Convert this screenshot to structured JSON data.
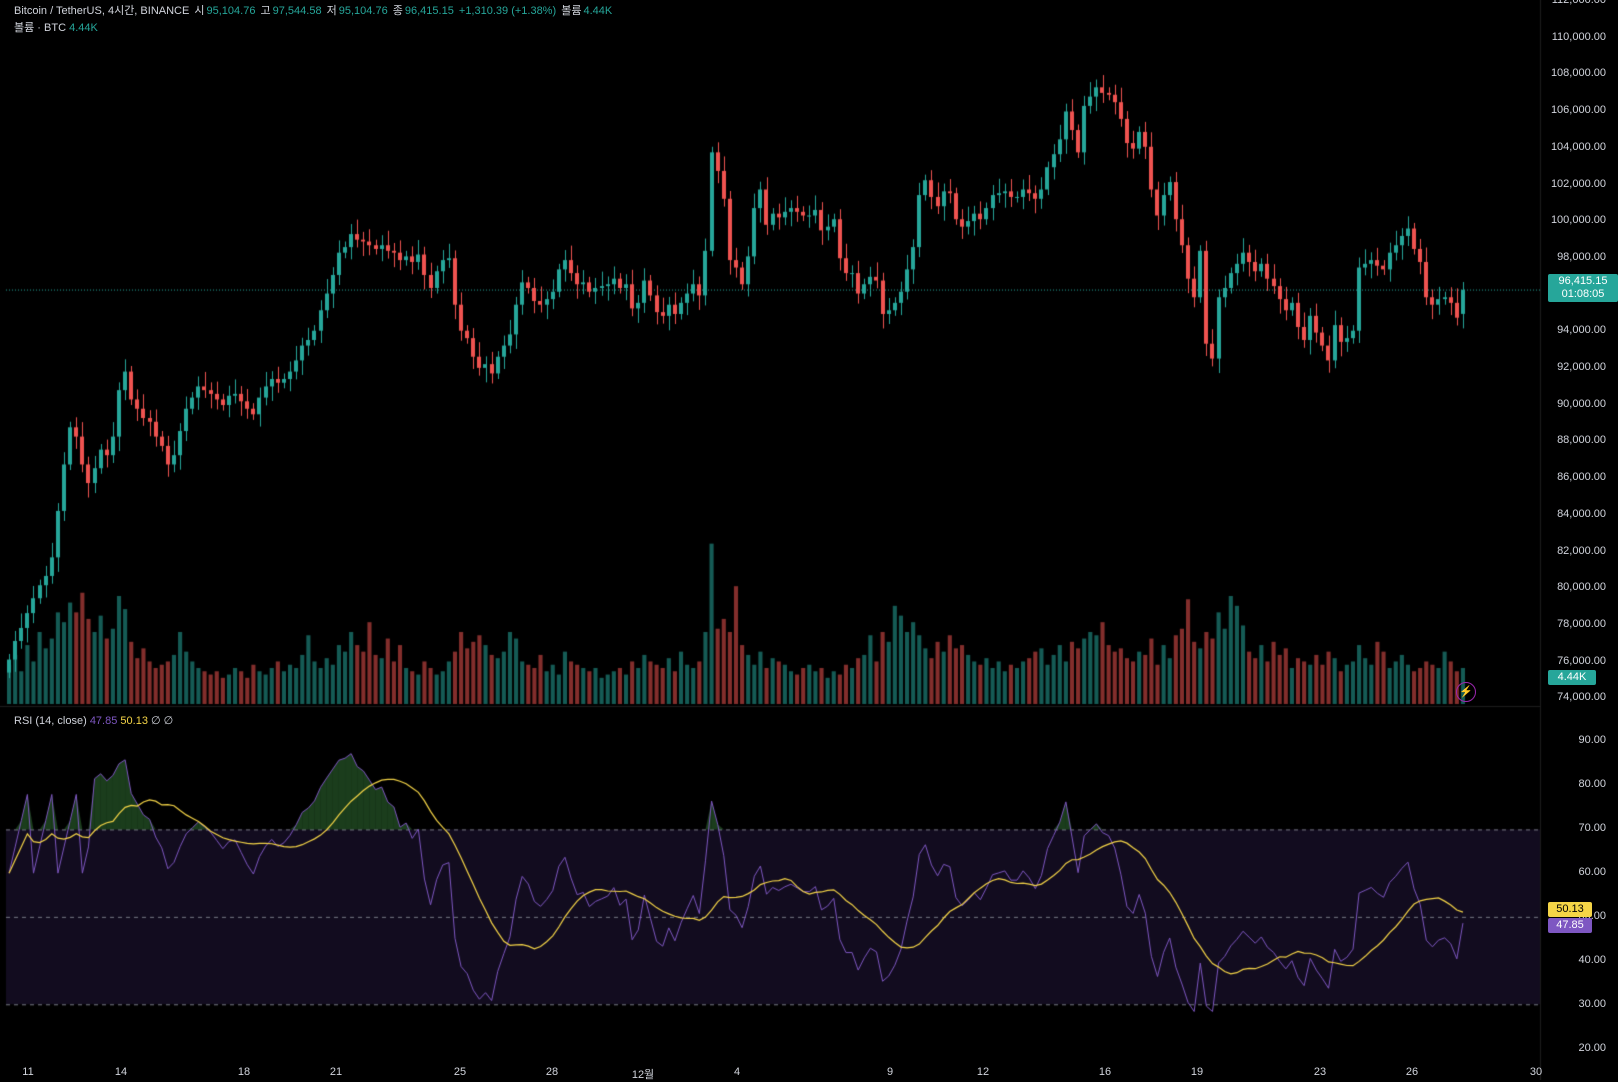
{
  "header": {
    "symbol": "Bitcoin / TetherUS, 4시간, BINANCE",
    "open_label": "시",
    "open": "95,104.76",
    "high_label": "고",
    "high": "97,544.58",
    "low_label": "저",
    "low": "95,104.76",
    "close_label": "종",
    "close": "96,415.15",
    "change": "+1,310.39 (+1.38%)",
    "vol_label": "볼륨",
    "vol": "4.44K"
  },
  "volume_legend": {
    "label": "볼륨 · BTC",
    "value": "4.44K"
  },
  "rsi_legend": {
    "label": "RSI (14, close)",
    "rsi": "47.85",
    "ma": "50.13",
    "na1": "∅",
    "na2": "∅"
  },
  "price_axis": [
    "112,000.00",
    "110,000.00",
    "108,000.00",
    "106,000.00",
    "104,000.00",
    "102,000.00",
    "100,000.00",
    "98,000.00",
    "96,000.00",
    "94,000.00",
    "92,000.00",
    "90,000.00",
    "88,000.00",
    "86,000.00",
    "84,000.00",
    "82,000.00",
    "80,000.00",
    "78,000.00",
    "76,000.00",
    "74,000.00"
  ],
  "rsi_axis": [
    "90.00",
    "80.00",
    "70.00",
    "60.00",
    "50.00",
    "40.00",
    "30.00",
    "20.00"
  ],
  "time_axis": [
    "11",
    "14",
    "18",
    "21",
    "25",
    "28",
    "12월",
    "4",
    "9",
    "12",
    "16",
    "19",
    "23",
    "26",
    "30"
  ],
  "badges": {
    "price": "96,415.15",
    "countdown": "01:08:05",
    "volume": "4.44K",
    "rsi_ma": "50.13",
    "rsi": "47.85"
  },
  "colors": {
    "up": "#26a69a",
    "down": "#ef5350",
    "rsi_line": "#7e57c2",
    "rsi_ma": "#f5d547",
    "rsi_band": "#120c1f"
  },
  "chart_data": {
    "type": "candlestick",
    "interval": "4h",
    "price_range": [
      74000,
      112000
    ],
    "rsi_range": [
      20,
      90
    ],
    "rsi_levels": [
      70,
      50,
      30
    ],
    "closes": [
      76500,
      77500,
      78200,
      79000,
      79800,
      80500,
      81000,
      82000,
      84500,
      87000,
      89000,
      88500,
      87000,
      86000,
      86800,
      87800,
      87500,
      88500,
      91000,
      92000,
      90500,
      90000,
      89500,
      89300,
      88500,
      88000,
      87000,
      87500,
      88800,
      90000,
      90600,
      91200,
      91000,
      90800,
      90500,
      90200,
      90700,
      90800,
      90400,
      90000,
      89700,
      90600,
      91200,
      91600,
      91400,
      91600,
      92000,
      92600,
      93400,
      93700,
      94200,
      95300,
      96200,
      97200,
      98400,
      98700,
      99400,
      99100,
      99000,
      98800,
      98600,
      98800,
      98500,
      98400,
      98000,
      98200,
      97900,
      98300,
      97200,
      96500,
      97400,
      98000,
      98100,
      95600,
      94200,
      93800,
      92800,
      92200,
      92400,
      91900,
      92800,
      93400,
      94000,
      95600,
      96800,
      96500,
      95800,
      95600,
      95900,
      96300,
      97500,
      98000,
      97300,
      96700,
      96800,
      96300,
      96500,
      96600,
      96700,
      97000,
      96500,
      96700,
      95400,
      95700,
      96900,
      96100,
      95200,
      95000,
      95600,
      95100,
      95700,
      96200,
      96700,
      96100,
      98500,
      103800,
      102800,
      101300,
      98000,
      97600,
      96700,
      98200,
      100800,
      101800,
      99900,
      100500,
      100300,
      100600,
      100800,
      100600,
      100400,
      100400,
      100700,
      99600,
      99800,
      100200,
      98100,
      97300,
      97300,
      96200,
      96700,
      97100,
      96900,
      95100,
      95300,
      95700,
      96300,
      97500,
      98700,
      101500,
      102300,
      101400,
      100900,
      101700,
      101600,
      100200,
      99800,
      100100,
      100500,
      100200,
      100800,
      101500,
      101600,
      101700,
      101400,
      101400,
      101800,
      101600,
      101300,
      101800,
      103000,
      103700,
      104500,
      106000,
      105000,
      103800,
      106300,
      106800,
      107300,
      107000,
      106900,
      106500,
      105600,
      104300,
      104000,
      104900,
      104100,
      101800,
      100400,
      101500,
      102200,
      100200,
      98800,
      97000,
      96000,
      98500,
      93500,
      92700,
      96000,
      96500,
      97300,
      97800,
      98400,
      97900,
      97400,
      97800,
      97000,
      96600,
      95900,
      95300,
      95700,
      94400,
      93700,
      95000,
      94100,
      93400,
      92600,
      94500,
      93600,
      93800,
      94200,
      97600,
      97800,
      98000,
      97700,
      97500,
      98400,
      98800,
      99300,
      99700,
      98600,
      97900,
      96000,
      95600,
      95900,
      96000,
      95700,
      94900,
      96400
    ],
    "opens": [
      75800,
      76500,
      77500,
      78200,
      79000,
      79800,
      80500,
      81000,
      82000,
      84500,
      87000,
      89000,
      88500,
      87000,
      86000,
      86800,
      87800,
      87500,
      88500,
      91000,
      92000,
      90500,
      90000,
      89500,
      89300,
      88500,
      88000,
      87000,
      87500,
      88800,
      90000,
      90600,
      91200,
      91000,
      90800,
      90500,
      90200,
      90700,
      90800,
      90400,
      90000,
      89700,
      90600,
      91200,
      91600,
      91400,
      91600,
      92000,
      92600,
      93400,
      93700,
      94200,
      95300,
      96200,
      97200,
      98400,
      98700,
      99400,
      99100,
      99000,
      98800,
      98600,
      98800,
      98500,
      98400,
      98000,
      98200,
      97900,
      98300,
      97200,
      96500,
      97400,
      98000,
      98100,
      95600,
      94200,
      93800,
      92800,
      92200,
      92400,
      91900,
      92800,
      93400,
      94000,
      95600,
      96800,
      96500,
      95800,
      95600,
      95900,
      96300,
      97500,
      98000,
      97300,
      96700,
      96800,
      96300,
      96500,
      96600,
      96700,
      97000,
      96500,
      96700,
      95400,
      95700,
      96900,
      96100,
      95200,
      95000,
      95600,
      95100,
      95700,
      96200,
      96700,
      96100,
      98500,
      103800,
      102800,
      101300,
      98000,
      97600,
      96700,
      98200,
      100800,
      101800,
      99900,
      100500,
      100300,
      100600,
      100800,
      100600,
      100400,
      100400,
      100700,
      99600,
      99800,
      100200,
      98100,
      97300,
      97300,
      96200,
      96700,
      97100,
      96900,
      95100,
      95300,
      95700,
      96300,
      97500,
      98700,
      101500,
      102300,
      101400,
      100900,
      101700,
      101600,
      100200,
      99800,
      100100,
      100500,
      100200,
      100800,
      101500,
      101600,
      101700,
      101400,
      101400,
      101800,
      101600,
      101300,
      101800,
      103000,
      103700,
      104500,
      106000,
      105000,
      103800,
      106300,
      106800,
      107300,
      107000,
      106900,
      106500,
      105600,
      104300,
      104000,
      104900,
      104100,
      101800,
      100400,
      101500,
      102200,
      100200,
      98800,
      97000,
      96000,
      98500,
      93500,
      92700,
      96000,
      96500,
      97300,
      97800,
      98400,
      97900,
      97400,
      97800,
      97000,
      96600,
      95900,
      95300,
      95700,
      94400,
      93700,
      95000,
      94100,
      93400,
      92600,
      94500,
      93600,
      93800,
      94200,
      97600,
      97800,
      98000,
      97700,
      97500,
      98400,
      98800,
      99300,
      99700,
      98600,
      97900,
      96000,
      95600,
      95900,
      96000,
      95700,
      95105
    ],
    "volumes": [
      12,
      15,
      10,
      18,
      13,
      22,
      17,
      20,
      28,
      25,
      31,
      28,
      34,
      26,
      22,
      27,
      20,
      23,
      33,
      29,
      19,
      14,
      17,
      13,
      11,
      12,
      13,
      15,
      22,
      16,
      13,
      11,
      10,
      9,
      10,
      8,
      9,
      11,
      10,
      8,
      12,
      10,
      9,
      11,
      13,
      10,
      12,
      11,
      15,
      21,
      13,
      11,
      14,
      12,
      18,
      16,
      22,
      18,
      16,
      25,
      15,
      14,
      20,
      13,
      18,
      11,
      10,
      9,
      13,
      11,
      9,
      10,
      13,
      16,
      22,
      17,
      19,
      21,
      18,
      15,
      14,
      16,
      22,
      20,
      13,
      12,
      11,
      15,
      10,
      12,
      9,
      16,
      13,
      12,
      11,
      10,
      11,
      8,
      9,
      10,
      11,
      9,
      13,
      11,
      15,
      13,
      12,
      11,
      14,
      10,
      16,
      12,
      11,
      13,
      22,
      49,
      23,
      26,
      22,
      36,
      18,
      15,
      12,
      16,
      11,
      14,
      13,
      12,
      10,
      9,
      11,
      12,
      10,
      11,
      8,
      10,
      9,
      12,
      11,
      14,
      15,
      21,
      13,
      22,
      19,
      30,
      27,
      22,
      25,
      21,
      17,
      14,
      19,
      16,
      21,
      17,
      18,
      15,
      13,
      12,
      14,
      11,
      13,
      10,
      12,
      11,
      13,
      14,
      16,
      17,
      12,
      15,
      18,
      13,
      19,
      17,
      20,
      22,
      21,
      25,
      18,
      16,
      17,
      14,
      13,
      16,
      15,
      20,
      12,
      18,
      14,
      21,
      23,
      32,
      19,
      17,
      22,
      20,
      28,
      23,
      33,
      30,
      24,
      16,
      14,
      18,
      13,
      19,
      15,
      17,
      11,
      14,
      13,
      12,
      15,
      12,
      16,
      14,
      10,
      12,
      13,
      18,
      14,
      12,
      19,
      16,
      11,
      13,
      15,
      12,
      10,
      11,
      13,
      12,
      11,
      16,
      13,
      10,
      11,
      14,
      12
    ]
  }
}
